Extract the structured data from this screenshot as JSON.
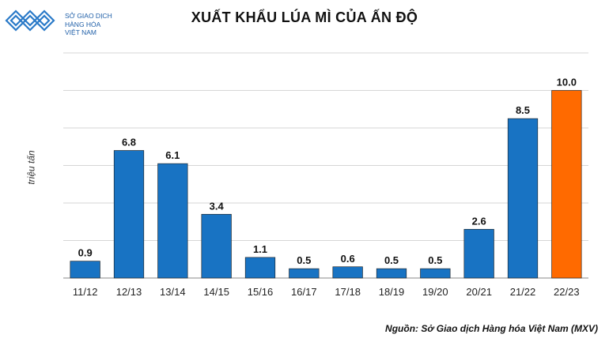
{
  "logo": {
    "line1": "SỞ GIAO DỊCH",
    "line2": "HÀNG HÓA",
    "line3": "VIỆT NAM",
    "icon": "exchange-logo-icon"
  },
  "source": "Nguồn: Sở Giao dịch Hàng hóa Việt Nam (MXV)",
  "colors": {
    "bar": "#1873c3",
    "highlight": "#ff6a00",
    "grid": "#d6d6d6"
  },
  "chart_data": {
    "type": "bar",
    "title": "XUẤT KHẨU LÚA MÌ CỦA ẤN ĐỘ",
    "ylabel": "triệu tấn",
    "xlabel": "",
    "categories": [
      "11/12",
      "12/13",
      "13/14",
      "14/15",
      "15/16",
      "16/17",
      "17/18",
      "18/19",
      "19/20",
      "20/21",
      "21/22",
      "22/23"
    ],
    "values": [
      0.9,
      6.8,
      6.1,
      3.4,
      1.1,
      0.5,
      0.6,
      0.5,
      0.5,
      2.6,
      8.5,
      10.0
    ],
    "labels": [
      "0.9",
      "6.8",
      "6.1",
      "3.4",
      "1.1",
      "0.5",
      "0.6",
      "0.5",
      "0.5",
      "2.6",
      "8.5",
      "10.0"
    ],
    "highlight_index": 11,
    "ylim": [
      0,
      12
    ],
    "grid": true
  }
}
